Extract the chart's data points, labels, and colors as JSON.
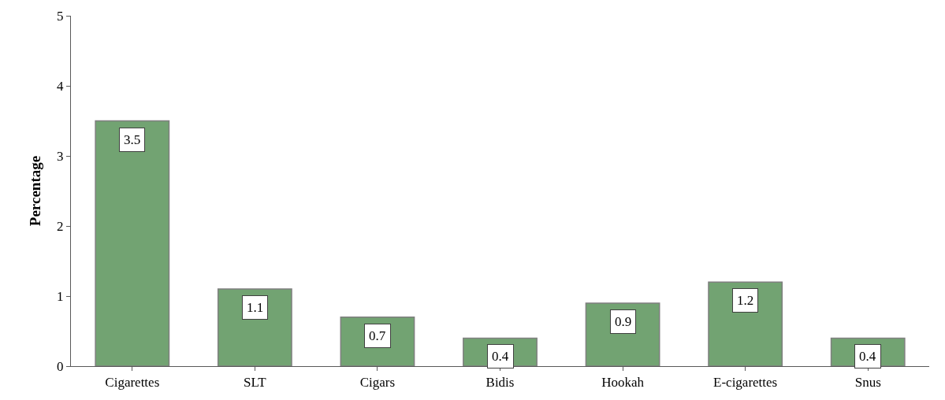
{
  "chart_data": {
    "type": "bar",
    "ylabel": "Percentage",
    "categories": [
      "Cigarettes",
      "SLT",
      "Cigars",
      "Bidis",
      "Hookah",
      "E-cigarettes",
      "Snus"
    ],
    "values": [
      3.5,
      1.1,
      0.7,
      0.4,
      0.9,
      1.2,
      0.4
    ],
    "color": "#72a372",
    "ylim": [
      0,
      5
    ],
    "yticks": [
      0,
      1,
      2,
      3,
      4,
      5
    ],
    "data_labels": true
  }
}
